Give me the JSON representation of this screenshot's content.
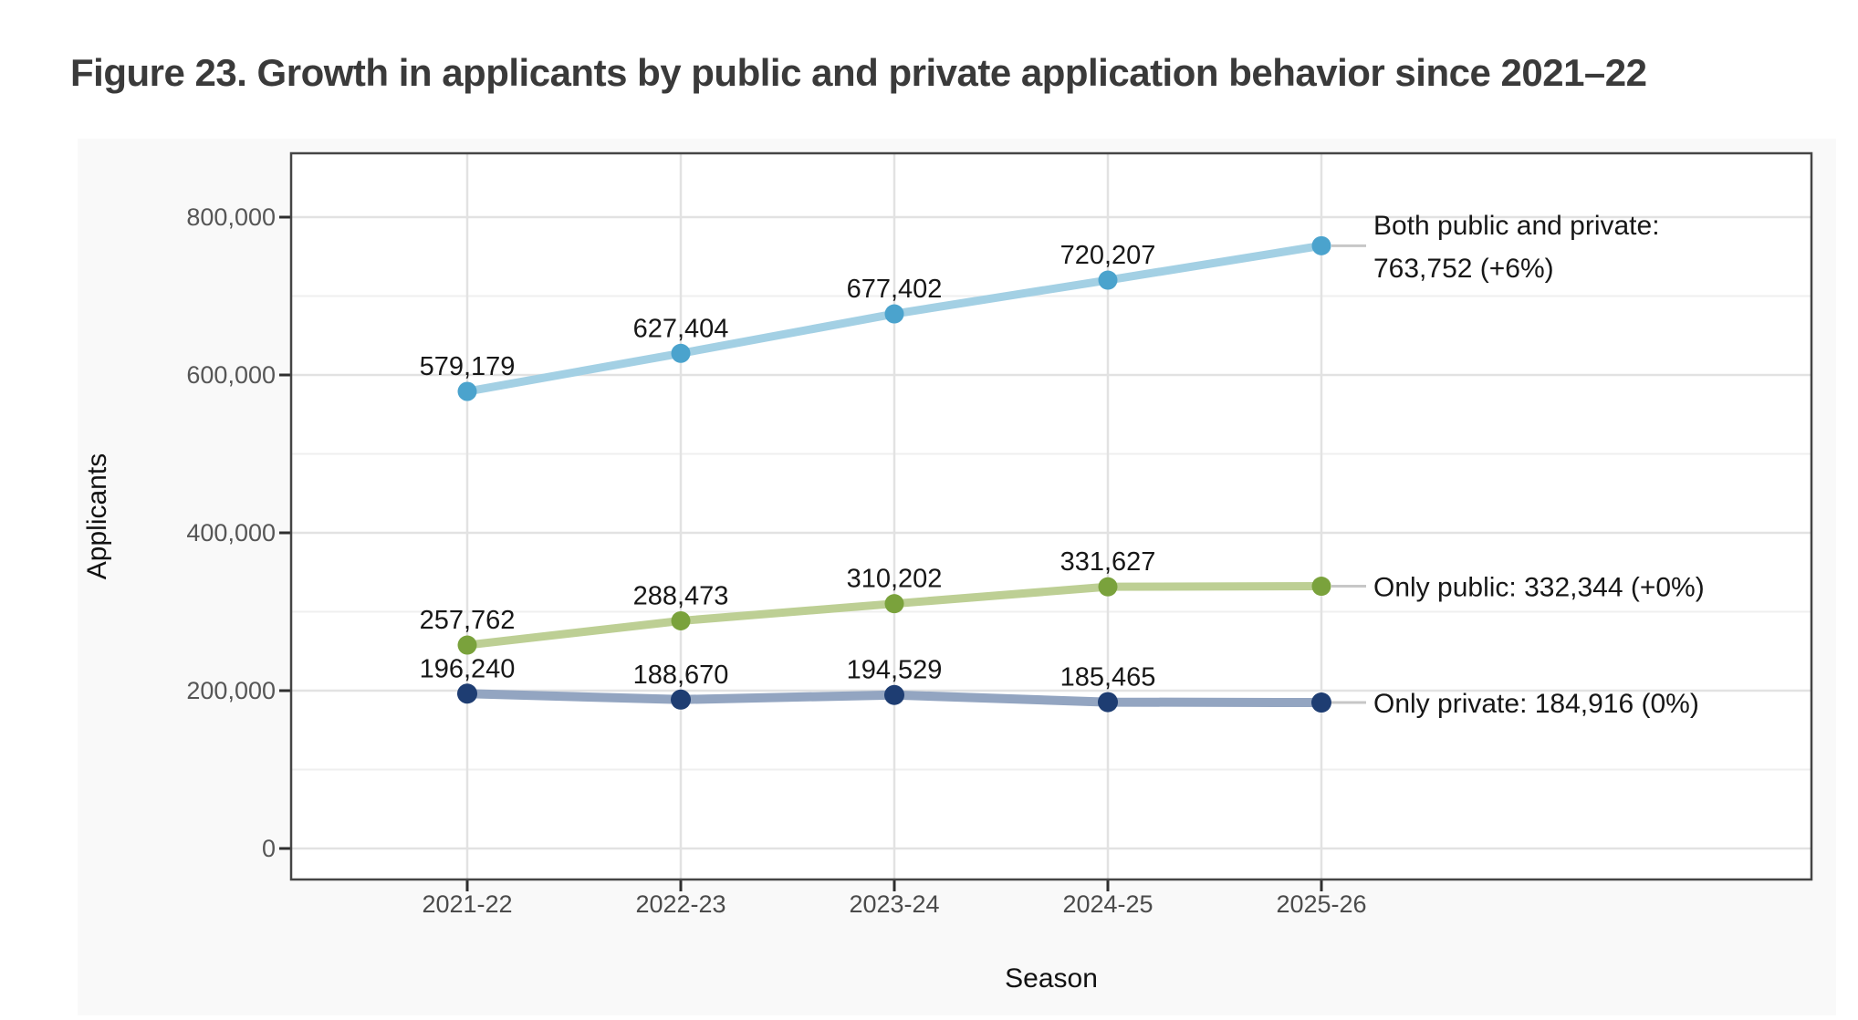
{
  "title": "Figure 23. Growth in applicants by public and private application behavior since 2021–22",
  "chart_data": {
    "type": "line",
    "title": "Figure 23. Growth in applicants by public and private application behavior since 2021–22",
    "xlabel": "Season",
    "ylabel": "Applicants",
    "categories": [
      "2021-22",
      "2022-23",
      "2023-24",
      "2024-25",
      "2025-26"
    ],
    "ylim": [
      0,
      880000
    ],
    "y_ticks": [
      {
        "value": 0,
        "label": "0"
      },
      {
        "value": 200000,
        "label": "200,000"
      },
      {
        "value": 400000,
        "label": "400,000"
      },
      {
        "value": 600000,
        "label": "600,000"
      },
      {
        "value": 800000,
        "label": "800,000"
      }
    ],
    "y_minor_gridlines": [
      100000,
      300000,
      500000,
      700000
    ],
    "grid": {
      "horizontal_major": true,
      "horizontal_minor": true,
      "vertical_major": true,
      "vertical_minor": false
    },
    "legend_position": "right-annotations",
    "series": [
      {
        "id": "both",
        "name": "Both public and private",
        "values": [
          579179,
          627404,
          677402,
          720207,
          763752
        ],
        "point_labels": [
          "579,179",
          "627,404",
          "677,402",
          "720,207"
        ],
        "annotation_lines": [
          "Both public and private:",
          "763,752 (+6%)"
        ],
        "point_color": "#4ba3cd",
        "line_color": "#a3d0e4"
      },
      {
        "id": "public",
        "name": "Only public",
        "values": [
          257762,
          288473,
          310202,
          331627,
          332344
        ],
        "point_labels": [
          "257,762",
          "288,473",
          "310,202",
          "331,627"
        ],
        "annotation_lines": [
          "Only public: 332,344 (+0%)"
        ],
        "point_color": "#7aa23c",
        "line_color": "#bdcf94"
      },
      {
        "id": "private",
        "name": "Only private",
        "values": [
          196240,
          188670,
          194529,
          185465,
          184916
        ],
        "point_labels": [
          "196,240",
          "188,670",
          "194,529",
          "185,465"
        ],
        "annotation_lines": [
          "Only private: 184,916 (0%)"
        ],
        "point_color": "#1e3d72",
        "line_color": "#93a5c1"
      }
    ],
    "colors": {
      "figure_background": "#f9f9f9",
      "panel_background": "#ffffff",
      "panel_border": "#454545",
      "grid_major": "#e2e2e2",
      "grid_minor": "#efefef",
      "tick_mark": "#2e2e2e",
      "leader_line": "#c7c7c7",
      "title_text": "#3a3a3a"
    }
  }
}
